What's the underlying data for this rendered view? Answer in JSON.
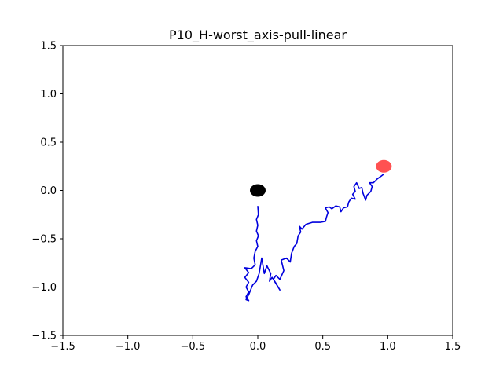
{
  "chart_data": {
    "type": "line",
    "title": "P10_H-worst_axis-pull-linear",
    "xlabel": "",
    "ylabel": "",
    "xlim": [
      -1.5,
      1.5
    ],
    "ylim": [
      -1.5,
      1.5
    ],
    "grid": false,
    "x_ticks": [
      -1.5,
      -1.0,
      -0.5,
      0.0,
      0.5,
      1.0,
      1.5
    ],
    "x_tick_labels": [
      "−1.5",
      "−1.0",
      "−0.5",
      "0.0",
      "0.5",
      "1.0",
      "1.5"
    ],
    "y_ticks": [
      -1.5,
      -1.0,
      -0.5,
      0.0,
      0.5,
      1.0,
      1.5
    ],
    "y_tick_labels": [
      "−1.5",
      "−1.0",
      "−0.5",
      "0.0",
      "0.5",
      "1.0",
      "1.5"
    ],
    "series": [
      {
        "color": "#0000dd",
        "points": [
          [
            0.0,
            -0.16
          ],
          [
            0.005,
            -0.25
          ],
          [
            -0.01,
            -0.3
          ],
          [
            0.0,
            -0.36
          ],
          [
            -0.01,
            -0.42
          ],
          [
            0.005,
            -0.47
          ],
          [
            -0.01,
            -0.52
          ],
          [
            0.0,
            -0.58
          ],
          [
            -0.02,
            -0.63
          ],
          [
            -0.03,
            -0.7
          ],
          [
            -0.02,
            -0.77
          ],
          [
            -0.05,
            -0.81
          ],
          [
            -0.1,
            -0.8
          ],
          [
            -0.07,
            -0.85
          ],
          [
            -0.1,
            -0.9
          ],
          [
            -0.07,
            -0.95
          ],
          [
            -0.09,
            -1.0
          ],
          [
            -0.07,
            -1.05
          ],
          [
            -0.09,
            -1.1
          ],
          [
            -0.07,
            -1.14
          ],
          [
            -0.09,
            -1.13
          ],
          [
            -0.07,
            -1.08
          ],
          [
            -0.04,
            -0.98
          ],
          [
            -0.01,
            -0.94
          ],
          [
            0.01,
            -0.86
          ],
          [
            0.03,
            -0.7
          ],
          [
            0.05,
            -0.86
          ],
          [
            0.07,
            -0.78
          ],
          [
            0.1,
            -0.86
          ],
          [
            0.09,
            -0.94
          ],
          [
            0.11,
            -0.9
          ],
          [
            0.14,
            -0.96
          ],
          [
            0.17,
            -1.03
          ],
          [
            0.12,
            -0.92
          ],
          [
            0.14,
            -0.88
          ],
          [
            0.17,
            -0.92
          ],
          [
            0.2,
            -0.83
          ],
          [
            0.18,
            -0.72
          ],
          [
            0.22,
            -0.7
          ],
          [
            0.25,
            -0.74
          ],
          [
            0.26,
            -0.65
          ],
          [
            0.28,
            -0.58
          ],
          [
            0.3,
            -0.55
          ],
          [
            0.31,
            -0.47
          ],
          [
            0.33,
            -0.43
          ],
          [
            0.32,
            -0.37
          ],
          [
            0.34,
            -0.4
          ],
          [
            0.37,
            -0.35
          ],
          [
            0.42,
            -0.33
          ],
          [
            0.48,
            -0.33
          ],
          [
            0.52,
            -0.32
          ],
          [
            0.53,
            -0.27
          ],
          [
            0.54,
            -0.23
          ],
          [
            0.52,
            -0.18
          ],
          [
            0.55,
            -0.17
          ],
          [
            0.57,
            -0.19
          ],
          [
            0.6,
            -0.16
          ],
          [
            0.63,
            -0.17
          ],
          [
            0.64,
            -0.22
          ],
          [
            0.66,
            -0.18
          ],
          [
            0.69,
            -0.17
          ],
          [
            0.7,
            -0.12
          ],
          [
            0.72,
            -0.08
          ],
          [
            0.75,
            -0.09
          ],
          [
            0.73,
            -0.04
          ],
          [
            0.75,
            -0.01
          ],
          [
            0.74,
            0.04
          ],
          [
            0.76,
            0.08
          ],
          [
            0.78,
            0.02
          ],
          [
            0.8,
            0.03
          ],
          [
            0.81,
            -0.03
          ],
          [
            0.83,
            -0.1
          ],
          [
            0.84,
            -0.05
          ],
          [
            0.87,
            -0.01
          ],
          [
            0.88,
            0.04
          ],
          [
            0.86,
            0.08
          ],
          [
            0.89,
            0.08
          ],
          [
            0.92,
            0.12
          ],
          [
            0.95,
            0.15
          ],
          [
            0.97,
            0.17
          ]
        ]
      }
    ],
    "markers": [
      {
        "name": "start",
        "x": 0.0,
        "y": 0.0,
        "color": "#000000"
      },
      {
        "name": "goal",
        "x": 0.97,
        "y": 0.25,
        "color": "#ff3333"
      }
    ]
  }
}
